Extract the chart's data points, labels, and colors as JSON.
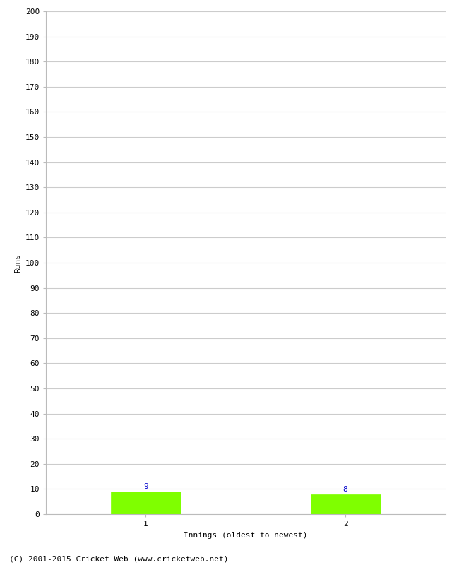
{
  "categories": [
    1,
    2
  ],
  "values": [
    9,
    8
  ],
  "bar_color": "#7FFF00",
  "xlabel": "Innings (oldest to newest)",
  "ylabel": "Runs",
  "ylim": [
    0,
    200
  ],
  "ytick_step": 10,
  "value_color": "#0000CC",
  "value_fontsize": 8,
  "footer": "(C) 2001-2015 Cricket Web (www.cricketweb.net)",
  "footer_fontsize": 8,
  "background_color": "#ffffff",
  "grid_color": "#cccccc",
  "bar_width": 0.35,
  "tick_fontsize": 8,
  "label_fontsize": 8
}
